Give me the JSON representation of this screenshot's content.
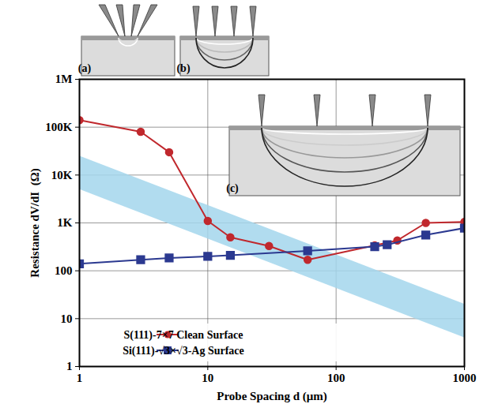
{
  "chart_data": {
    "type": "line",
    "x_label": "Probe Spacing d (μm)",
    "y_label": "Resistance dV/dI  (Ω)",
    "log": true,
    "grid": true,
    "legend": "bottom",
    "xlim": [
      1,
      1000
    ],
    "ylim": [
      1,
      1000000
    ],
    "xticks": [
      1,
      10,
      100,
      1000
    ],
    "yticks": [
      1,
      10,
      100,
      {
        "value": 1000,
        "label": "1K"
      },
      {
        "value": 10000,
        "label": "10K"
      },
      {
        "value": 100000,
        "label": "100K"
      },
      {
        "value": 1000000,
        "label": "1M"
      }
    ],
    "series": [
      {
        "name": "S(111)-7×7 Clean Surface",
        "color": "#c0282d",
        "marker": "circle",
        "x": [
          1,
          3,
          5,
          10,
          15,
          30,
          60,
          200,
          300,
          500,
          1000
        ],
        "values": [
          140000,
          80000,
          30000,
          1100,
          500,
          330,
          170,
          340,
          430,
          1000,
          1050
        ]
      },
      {
        "name": "Si(111)-√3×√3-Ag Surface",
        "color": "#2b3990",
        "marker": "square",
        "x": [
          1,
          3,
          5,
          10,
          15,
          60,
          200,
          250,
          500,
          1000
        ],
        "values": [
          140,
          170,
          185,
          200,
          210,
          260,
          320,
          350,
          560,
          780
        ]
      },
      {
        "type": "area",
        "color": "#a3d6ec",
        "x": [
          1,
          1000
        ],
        "lower": [
          5000,
          4
        ],
        "upper": [
          25000,
          20
        ]
      }
    ],
    "annotations": [
      {
        "label": "(a)"
      },
      {
        "label": "(b)"
      },
      {
        "label": "(c)"
      }
    ]
  }
}
